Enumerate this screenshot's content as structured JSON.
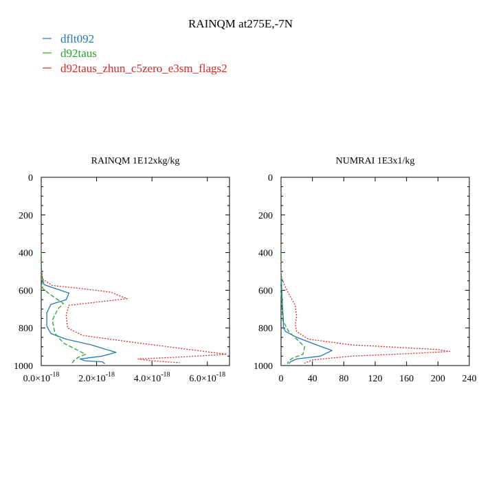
{
  "title": "RAINQM at275E,-7N",
  "colors": {
    "blue": "#1f77b4",
    "green": "#2ca02c",
    "red": "#d62728",
    "axis": "#000000"
  },
  "legend": [
    {
      "label": "dflt092",
      "color_key": "blue"
    },
    {
      "label": "d92taus",
      "color_key": "green"
    },
    {
      "label": "d92taus_zhun_c5zero_e3sm_flags2",
      "color_key": "red"
    }
  ],
  "chart_data": [
    {
      "type": "line",
      "title": "RAINQM  1E12xkg/kg",
      "xlim": [
        0,
        6.8e-18
      ],
      "ylim": [
        1000,
        0
      ],
      "xticks": [
        0,
        2e-18,
        4e-18,
        6e-18
      ],
      "xtick_labels": [
        {
          "base": "0.0×10",
          "exp": "-18"
        },
        {
          "base": "2.0×10",
          "exp": "-18"
        },
        {
          "base": "4.0×10",
          "exp": "-18"
        },
        {
          "base": "6.0×10",
          "exp": "-18"
        }
      ],
      "yticks": [
        0,
        200,
        400,
        600,
        800,
        1000
      ],
      "series": [
        {
          "name": "dflt092",
          "color_key": "blue",
          "dash": "solid",
          "x": [
            0,
            0,
            2e-20,
            1e-19,
            5e-19,
            1e-18,
            9e-19,
            3.5e-19,
            2e-19,
            2e-19,
            3.5e-19,
            9e-19,
            1.8e-18,
            2.7e-18,
            2.2e-18,
            1.4e-18,
            1.6e-18,
            2.2e-18,
            2.3e-18
          ],
          "y": [
            350,
            450,
            520,
            570,
            590,
            615,
            650,
            675,
            720,
            790,
            830,
            860,
            890,
            930,
            950,
            965,
            975,
            980,
            990
          ]
        },
        {
          "name": "d92taus",
          "color_key": "green",
          "dash": "dashed",
          "x": [
            0,
            0,
            5e-20,
            3e-19,
            8e-19,
            6e-19,
            4e-19,
            5e-19,
            8e-19,
            1.6e-18,
            1.35e-18,
            1.2e-18,
            1.1e-18
          ],
          "y": [
            350,
            500,
            590,
            620,
            670,
            700,
            760,
            830,
            880,
            940,
            955,
            970,
            990
          ]
        },
        {
          "name": "d92taus_zhun_c5zero_e3sm_flags2",
          "color_key": "red",
          "dash": "dotted",
          "x": [
            0,
            0,
            5e-20,
            4e-19,
            1.4e-18,
            2.5e-18,
            3.1e-18,
            1e-18,
            9e-19,
            9.5e-19,
            1.5e-18,
            3.5e-18,
            6.7e-18,
            5e-18,
            3.5e-18,
            4e-18,
            5e-18
          ],
          "y": [
            350,
            480,
            540,
            575,
            590,
            610,
            645,
            680,
            730,
            800,
            840,
            880,
            940,
            955,
            965,
            975,
            985
          ]
        }
      ]
    },
    {
      "type": "line",
      "title": "NUMRAI  1E3x1/kg",
      "xlim": [
        0,
        240
      ],
      "ylim": [
        1000,
        0
      ],
      "xticks": [
        0,
        40,
        80,
        120,
        160,
        200,
        240
      ],
      "xtick_labels": [
        {
          "base": "0",
          "exp": ""
        },
        {
          "base": "40",
          "exp": ""
        },
        {
          "base": "80",
          "exp": ""
        },
        {
          "base": "120",
          "exp": ""
        },
        {
          "base": "160",
          "exp": ""
        },
        {
          "base": "200",
          "exp": ""
        },
        {
          "base": "240",
          "exp": ""
        }
      ],
      "yticks": [
        0,
        200,
        400,
        600,
        800,
        1000
      ],
      "series": [
        {
          "name": "dflt092",
          "color_key": "blue",
          "dash": "solid",
          "x": [
            0,
            0,
            1,
            2,
            3,
            3,
            6,
            20,
            45,
            65,
            50,
            20,
            12,
            10
          ],
          "y": [
            350,
            500,
            600,
            700,
            760,
            800,
            820,
            850,
            890,
            920,
            950,
            965,
            980,
            990
          ]
        },
        {
          "name": "d92taus",
          "color_key": "green",
          "dash": "dashed",
          "x": [
            0,
            0,
            2,
            10,
            20,
            30,
            28,
            15,
            10,
            8
          ],
          "y": [
            350,
            600,
            760,
            820,
            860,
            900,
            940,
            960,
            975,
            990
          ]
        },
        {
          "name": "d92taus_zhun_c5zero_e3sm_flags2",
          "color_key": "red",
          "dash": "dotted",
          "x": [
            0,
            0,
            4,
            10,
            18,
            20,
            18,
            20,
            35,
            90,
            200,
            215,
            170,
            90,
            40,
            28
          ],
          "y": [
            350,
            520,
            570,
            620,
            680,
            740,
            780,
            820,
            860,
            890,
            915,
            925,
            935,
            950,
            970,
            990
          ]
        }
      ]
    }
  ]
}
